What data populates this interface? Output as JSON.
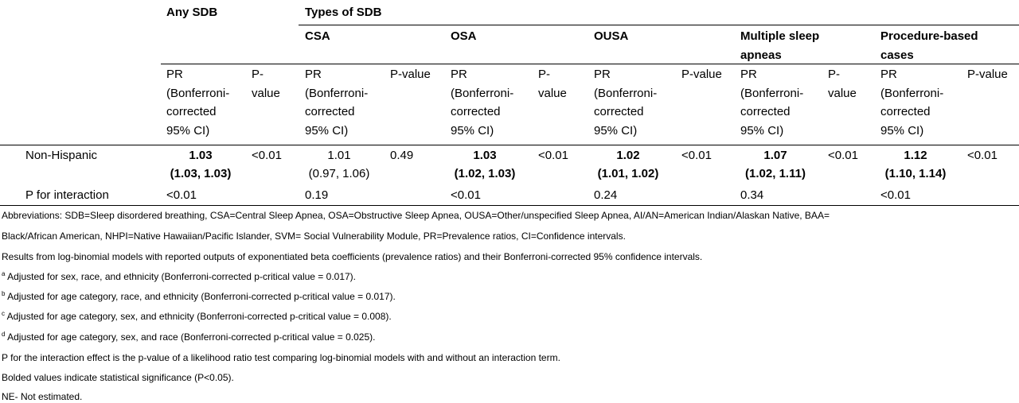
{
  "header": {
    "any_sdb": "Any SDB",
    "types_of_sdb": "Types of SDB",
    "types": [
      {
        "line1": "CSA",
        "line2": ""
      },
      {
        "line1": "OSA",
        "line2": ""
      },
      {
        "line1": "OUSA",
        "line2": ""
      },
      {
        "line1": "Multiple sleep",
        "line2": "apneas"
      },
      {
        "line1": "Procedure-based",
        "line2": "cases"
      }
    ],
    "pr_lines": [
      "PR",
      "(Bonferroni-",
      "corrected",
      "95% CI)"
    ],
    "p_split": [
      "P-",
      "value"
    ],
    "p_single": "P-value"
  },
  "rows": {
    "nonhispanic": {
      "label": "Non-Hispanic",
      "cells": [
        {
          "pr": "1.03",
          "ci": "(1.03, 1.03)",
          "bold": true,
          "p": "<0.01"
        },
        {
          "pr": "1.01",
          "ci": "(0.97, 1.06)",
          "bold": false,
          "p": "0.49"
        },
        {
          "pr": "1.03",
          "ci": "(1.02, 1.03)",
          "bold": true,
          "p": "<0.01"
        },
        {
          "pr": "1.02",
          "ci": "(1.01, 1.02)",
          "bold": true,
          "p": "<0.01"
        },
        {
          "pr": "1.07",
          "ci": "(1.02, 1.11)",
          "bold": true,
          "p": "<0.01"
        },
        {
          "pr": "1.12",
          "ci": "(1.10, 1.14)",
          "bold": true,
          "p": "<0.01"
        }
      ]
    },
    "interaction": {
      "label": "P for interaction",
      "values": [
        "<0.01",
        "0.19",
        "<0.01",
        "0.24",
        "0.34",
        "<0.01"
      ]
    }
  },
  "footnotes": {
    "abbrev_1": "Abbreviations: SDB=Sleep disordered breathing, CSA=Central Sleep Apnea, OSA=Obstructive Sleep Apnea, OUSA=Other/unspecified Sleep Apnea, AI/AN=American Indian/Alaskan Native, BAA=",
    "abbrev_2": "Black/African American, NHPI=Native Hawaiian/Pacific Islander, SVM= Social Vulnerability Module, PR=Prevalence ratios, CI=Confidence intervals.",
    "results": "Results from log-binomial models with reported outputs of exponentiated beta coefficients (prevalence ratios) and their Bonferroni-corrected 95% confidence intervals.",
    "a_mark": "a",
    "a_text": " Adjusted for sex, race, and ethnicity (Bonferroni-corrected p-critical value = 0.017).",
    "b_mark": "b",
    "b_text": " Adjusted for age category, race, and ethnicity (Bonferroni-corrected p-critical value = 0.017).",
    "c_mark": "c",
    "c_text": " Adjusted for age category, sex, and ethnicity (Bonferroni-corrected p-critical value = 0.008).",
    "d_mark": "d",
    "d_text": " Adjusted for age category, sex, and race (Bonferroni-corrected p-critical value = 0.025).",
    "p_interaction": "P for the interaction effect is the p-value of a likelihood ratio test comparing log-binomial models with and without an interaction term.",
    "bolded": "Bolded values indicate statistical significance (P<0.05).",
    "ne": "NE- Not estimated."
  }
}
